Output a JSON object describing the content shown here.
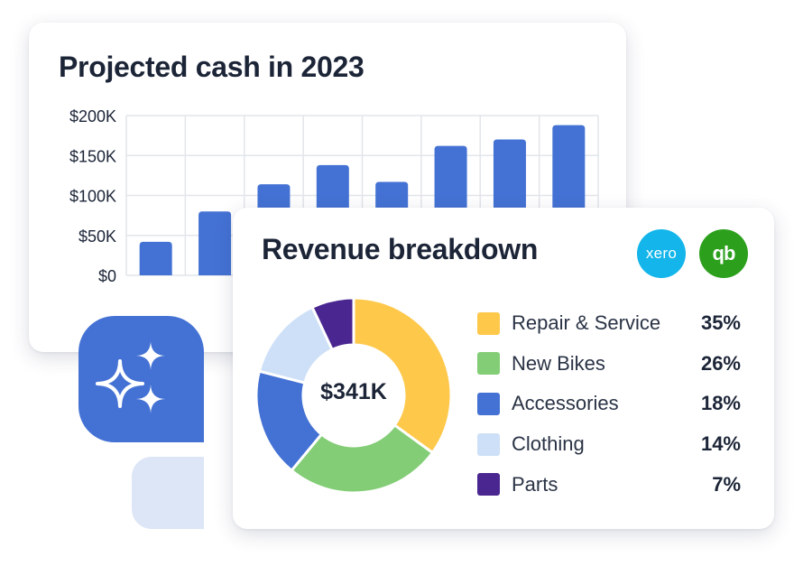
{
  "colors": {
    "bar": "#4472d4",
    "grid": "#e2e5ea",
    "text": "#1c2537",
    "xero": "#13b5ea",
    "quickbooks": "#2ca01c"
  },
  "cash_card": {
    "title": "Projected cash in 2023"
  },
  "revenue_card": {
    "title": "Revenue breakdown",
    "center_total": "$341K",
    "logos": [
      {
        "name": "xero-logo",
        "text": "xero"
      },
      {
        "name": "quickbooks-logo",
        "text": "qb"
      }
    ]
  },
  "decor": {
    "sparkle_icon": "sparkle-icon"
  },
  "chart_data": [
    {
      "type": "bar",
      "title": "Projected cash in 2023",
      "y_ticks": [
        "$200K",
        "$150K",
        "$100K",
        "$50K",
        "$0"
      ],
      "ylim": [
        0,
        200000
      ],
      "values": [
        42000,
        80000,
        114000,
        138000,
        117000,
        162000,
        170000,
        188000
      ],
      "grid": true
    },
    {
      "type": "pie",
      "donut": true,
      "title": "Revenue breakdown",
      "total_label": "$341K",
      "slices": [
        {
          "label": "Repair & Service",
          "pct_label": "35%",
          "value": 35,
          "color": "#fec84b"
        },
        {
          "label": "New Bikes",
          "pct_label": "26%",
          "value": 26,
          "color": "#82cd75"
        },
        {
          "label": "Accessories",
          "pct_label": "18%",
          "value": 18,
          "color": "#4472d4"
        },
        {
          "label": "Clothing",
          "pct_label": "14%",
          "value": 14,
          "color": "#cde0f7"
        },
        {
          "label": "Parts",
          "pct_label": "7%",
          "value": 7,
          "color": "#4a2691"
        }
      ],
      "legend_position": "right"
    }
  ]
}
